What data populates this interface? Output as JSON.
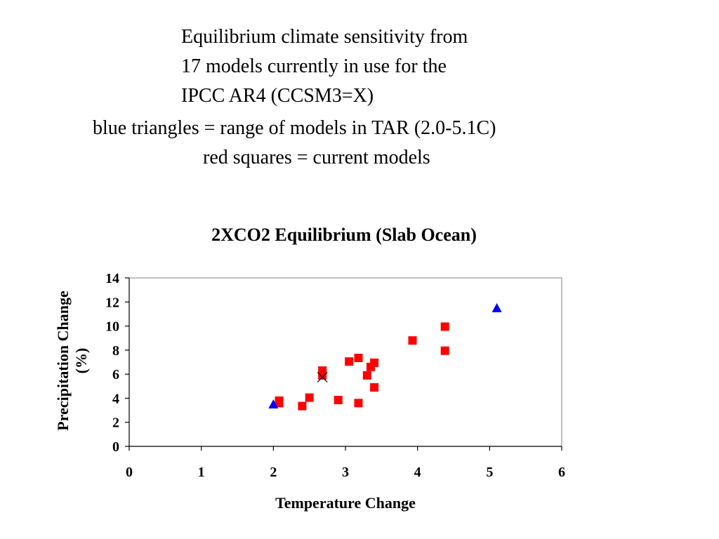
{
  "slide": {
    "title_lines": [
      "Equilibrium climate sensitivity from",
      "17 models currently in use for the",
      "IPCC AR4  (CCSM3=X)"
    ],
    "note_lines": [
      "blue triangles = range of models in TAR (2.0-5.1C)",
      "red squares = current models"
    ]
  },
  "chart_data": {
    "type": "scatter",
    "title": "2XCO2 Equilibrium (Slab Ocean)",
    "xlabel": "Temperature Change",
    "ylabel_lines": [
      "Precipitation Change",
      "(%)"
    ],
    "xlim": [
      0,
      6
    ],
    "ylim": [
      0,
      14
    ],
    "x_ticks": [
      0,
      1,
      2,
      3,
      4,
      5,
      6
    ],
    "y_ticks": [
      0,
      2,
      4,
      6,
      8,
      10,
      12,
      14
    ],
    "grid": false,
    "colors": {
      "squares": "#ff0000",
      "triangles": "#0000ff",
      "cross": "#000000"
    },
    "series": [
      {
        "marker": "square",
        "color": "#ff0000",
        "points": [
          [
            2.08,
            3.8
          ],
          [
            2.08,
            3.6
          ],
          [
            2.4,
            3.35
          ],
          [
            2.5,
            4.05
          ],
          [
            2.68,
            6.3
          ],
          [
            2.68,
            5.9
          ],
          [
            2.9,
            3.85
          ],
          [
            3.05,
            7.05
          ],
          [
            3.18,
            7.35
          ],
          [
            3.18,
            3.6
          ],
          [
            3.3,
            5.9
          ],
          [
            3.35,
            6.6
          ],
          [
            3.4,
            6.95
          ],
          [
            3.4,
            4.9
          ],
          [
            3.93,
            8.8
          ],
          [
            4.38,
            9.95
          ],
          [
            4.38,
            7.95
          ]
        ]
      },
      {
        "marker": "triangle",
        "color": "#0000ff",
        "points": [
          [
            2.0,
            3.5
          ],
          [
            5.1,
            11.5
          ]
        ]
      },
      {
        "marker": "x",
        "color": "#000000",
        "points": [
          [
            2.68,
            5.75
          ]
        ]
      }
    ]
  }
}
